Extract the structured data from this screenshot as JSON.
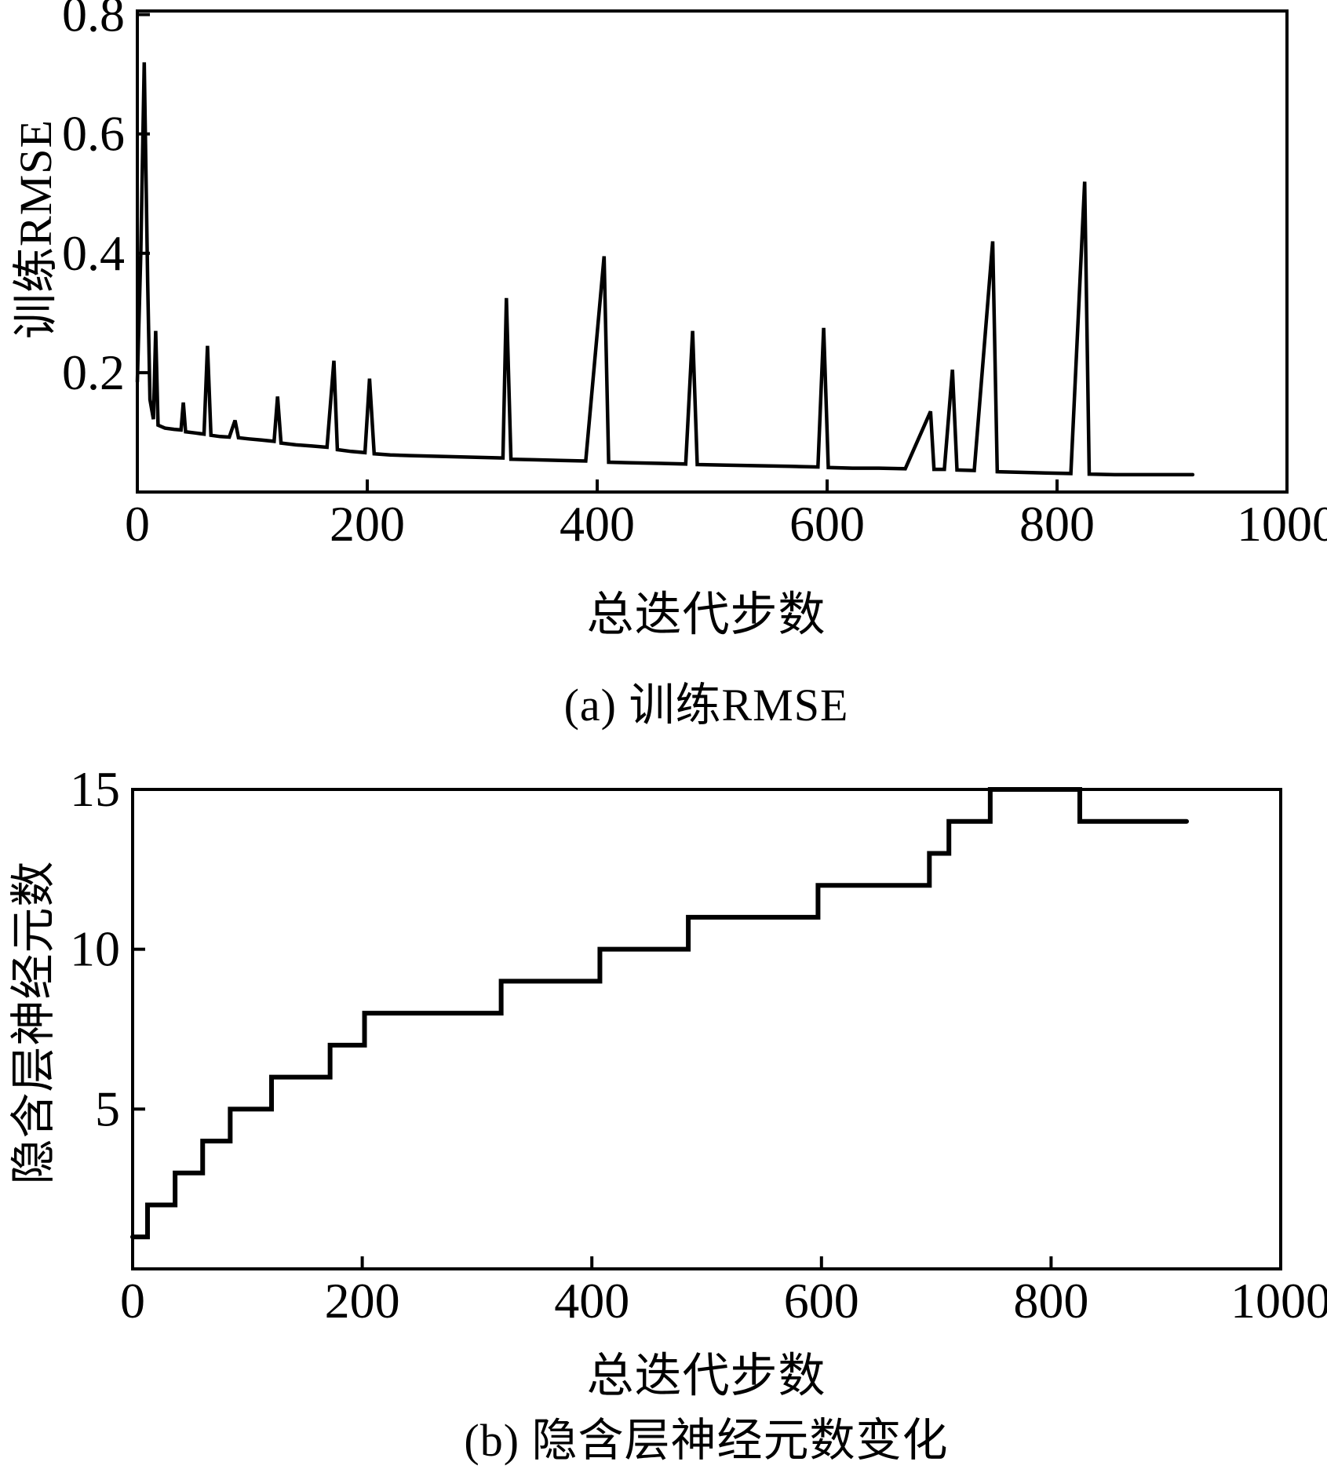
{
  "figure": {
    "background": "#ffffff",
    "line_color": "#000000",
    "description": "Two stacked line plots of a constructive neural network training run"
  },
  "chart_data": [
    {
      "id": "a",
      "type": "line",
      "caption": "(a) 训练RMSE",
      "xlabel": "总迭代步数",
      "ylabel": "训练RMSE",
      "xlim": [
        0,
        1000
      ],
      "ylim": [
        0,
        0.806
      ],
      "xticks": [
        0,
        200,
        400,
        600,
        800,
        1000
      ],
      "xtick_labels": [
        "0",
        "200",
        "400",
        "600",
        "800",
        "1000"
      ],
      "yticks": [
        0.2,
        0.4,
        0.6,
        0.8
      ],
      "ytick_labels": [
        "0.2",
        "0.4",
        "0.6",
        "0.8"
      ],
      "grid": false,
      "legend": null,
      "line_color": "#000000",
      "points": [
        [
          0,
          0.185
        ],
        [
          3,
          0.4
        ],
        [
          6,
          0.72
        ],
        [
          9,
          0.35
        ],
        [
          11,
          0.155
        ],
        [
          14,
          0.122
        ],
        [
          16,
          0.27
        ],
        [
          18,
          0.112
        ],
        [
          24,
          0.107
        ],
        [
          32,
          0.105
        ],
        [
          38,
          0.104
        ],
        [
          40,
          0.15
        ],
        [
          42,
          0.101
        ],
        [
          50,
          0.099
        ],
        [
          58,
          0.097
        ],
        [
          61,
          0.245
        ],
        [
          64,
          0.095
        ],
        [
          72,
          0.093
        ],
        [
          80,
          0.092
        ],
        [
          85,
          0.12
        ],
        [
          88,
          0.091
        ],
        [
          97,
          0.089
        ],
        [
          108,
          0.087
        ],
        [
          119,
          0.085
        ],
        [
          122,
          0.16
        ],
        [
          125,
          0.082
        ],
        [
          138,
          0.079
        ],
        [
          152,
          0.077
        ],
        [
          165,
          0.075
        ],
        [
          171,
          0.22
        ],
        [
          174,
          0.071
        ],
        [
          186,
          0.068
        ],
        [
          198,
          0.066
        ],
        [
          202,
          0.19
        ],
        [
          206,
          0.064
        ],
        [
          220,
          0.062
        ],
        [
          238,
          0.061
        ],
        [
          258,
          0.06
        ],
        [
          278,
          0.059
        ],
        [
          298,
          0.058
        ],
        [
          318,
          0.057
        ],
        [
          321,
          0.325
        ],
        [
          325,
          0.055
        ],
        [
          345,
          0.054
        ],
        [
          368,
          0.053
        ],
        [
          390,
          0.052
        ],
        [
          406,
          0.395
        ],
        [
          410,
          0.05
        ],
        [
          430,
          0.049
        ],
        [
          455,
          0.048
        ],
        [
          477,
          0.047
        ],
        [
          483,
          0.27
        ],
        [
          487,
          0.046
        ],
        [
          512,
          0.045
        ],
        [
          540,
          0.044
        ],
        [
          568,
          0.043
        ],
        [
          592,
          0.042
        ],
        [
          597,
          0.275
        ],
        [
          601,
          0.041
        ],
        [
          622,
          0.04
        ],
        [
          645,
          0.04
        ],
        [
          668,
          0.039
        ],
        [
          690,
          0.135
        ],
        [
          693,
          0.038
        ],
        [
          702,
          0.038
        ],
        [
          709,
          0.205
        ],
        [
          713,
          0.037
        ],
        [
          728,
          0.036
        ],
        [
          744,
          0.42
        ],
        [
          748,
          0.034
        ],
        [
          768,
          0.033
        ],
        [
          790,
          0.032
        ],
        [
          812,
          0.031
        ],
        [
          824,
          0.52
        ],
        [
          828,
          0.03
        ],
        [
          850,
          0.029
        ],
        [
          885,
          0.029
        ],
        [
          918,
          0.029
        ]
      ]
    },
    {
      "id": "b",
      "type": "step",
      "caption": "(b) 隐含层神经元数变化",
      "xlabel": "总迭代步数",
      "ylabel": "隐含层神经元数",
      "xlim": [
        0,
        1000
      ],
      "ylim": [
        0,
        15
      ],
      "xticks": [
        0,
        200,
        400,
        600,
        800,
        1000
      ],
      "xtick_labels": [
        "0",
        "200",
        "400",
        "600",
        "800",
        "1000"
      ],
      "yticks": [
        5,
        10,
        15
      ],
      "ytick_labels": [
        "5",
        "10",
        "15"
      ],
      "grid": false,
      "legend": null,
      "line_color": "#000000",
      "steps": [
        [
          0,
          1
        ],
        [
          13,
          2
        ],
        [
          37,
          3
        ],
        [
          61,
          4
        ],
        [
          85,
          5
        ],
        [
          121,
          6
        ],
        [
          172,
          7
        ],
        [
          202,
          8
        ],
        [
          321,
          9
        ],
        [
          407,
          10
        ],
        [
          484,
          11
        ],
        [
          597,
          12
        ],
        [
          694,
          13
        ],
        [
          711,
          14
        ],
        [
          747,
          15
        ],
        [
          825,
          14
        ]
      ],
      "x_end": 918
    }
  ]
}
